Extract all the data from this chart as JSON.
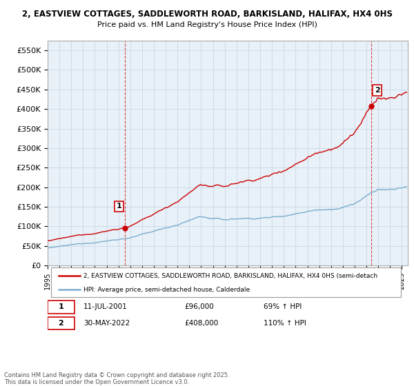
{
  "title1": "2, EASTVIEW COTTAGES, SADDLEWORTH ROAD, BARKISLAND, HALIFAX, HX4 0HS",
  "title2": "Price paid vs. HM Land Registry's House Price Index (HPI)",
  "ylabel_ticks": [
    "£0",
    "£50K",
    "£100K",
    "£150K",
    "£200K",
    "£250K",
    "£300K",
    "£350K",
    "£400K",
    "£450K",
    "£500K",
    "£550K"
  ],
  "ytick_vals": [
    0,
    50000,
    100000,
    150000,
    200000,
    250000,
    300000,
    350000,
    400000,
    450000,
    500000,
    550000
  ],
  "ylim": [
    0,
    575000
  ],
  "xlim_start": 1995.0,
  "xlim_end": 2025.5,
  "legend_line1": "2, EASTVIEW COTTAGES, SADDLEWORTH ROAD, BARKISLAND, HALIFAX, HX4 0HS (semi-detach",
  "legend_line2": "HPI: Average price, semi-detached house, Calderdale",
  "sale1_date": 2001.53,
  "sale1_price": 96000,
  "sale1_label": "1",
  "sale2_date": 2022.41,
  "sale2_price": 408000,
  "sale2_label": "2",
  "annotation1_num": "1",
  "annotation1_date": "11-JUL-2001",
  "annotation1_price": "£96,000",
  "annotation1_hpi": "69% ↑ HPI",
  "annotation2_num": "2",
  "annotation2_date": "30-MAY-2022",
  "annotation2_price": "£408,000",
  "annotation2_hpi": "110% ↑ HPI",
  "footnote": "Contains HM Land Registry data © Crown copyright and database right 2025.\nThis data is licensed under the Open Government Licence v3.0.",
  "line_color_red": "#cc0000",
  "line_color_blue": "#7aadcc",
  "dashed_line_color": "#cc0000",
  "grid_color": "#c8d8e8",
  "bg_color": "#ffffff",
  "plot_bg_color": "#e8f0f8"
}
